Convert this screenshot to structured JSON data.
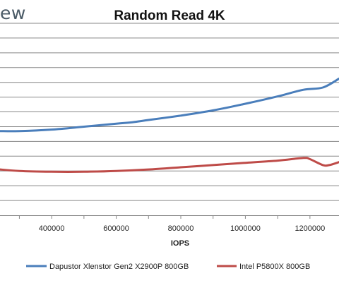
{
  "header": {
    "brand_partial": "ew"
  },
  "chart_data": {
    "type": "line",
    "title": "Random Read 4K",
    "xlabel": "IOPS",
    "ylabel": "",
    "x_ticks": [
      400000,
      600000,
      800000,
      1000000,
      1200000
    ],
    "x_tick_labels": [
      "400000",
      "600000",
      "800000",
      "1000000",
      "1200000"
    ],
    "xlim": [
      240000,
      1290000
    ],
    "ylim": [
      0,
      13
    ],
    "grid": true,
    "legend": "bottom",
    "series": [
      {
        "name": "Dapustor Xlenstor Gen2 X2900P 800GB",
        "color": "#4a7ebb",
        "x": [
          240000,
          300000,
          400000,
          500000,
          600000,
          650000,
          700000,
          800000,
          900000,
          1000000,
          1100000,
          1180000,
          1240000,
          1290000
        ],
        "y": [
          5.7,
          5.7,
          5.8,
          6.0,
          6.2,
          6.3,
          6.45,
          6.75,
          7.1,
          7.55,
          8.05,
          8.5,
          8.65,
          9.25
        ]
      },
      {
        "name": "Intel P5800X 800GB",
        "color": "#be4b48",
        "x": [
          240000,
          300000,
          400000,
          500000,
          600000,
          700000,
          800000,
          900000,
          1000000,
          1100000,
          1180000,
          1200000,
          1240000,
          1260000,
          1290000
        ],
        "y": [
          3.1,
          3.0,
          2.95,
          2.95,
          3.0,
          3.1,
          3.25,
          3.4,
          3.55,
          3.7,
          3.88,
          3.8,
          3.4,
          3.4,
          3.6
        ]
      }
    ]
  }
}
